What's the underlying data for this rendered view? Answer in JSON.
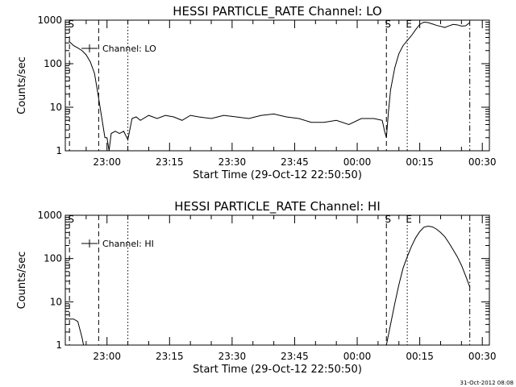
{
  "page": {
    "timestamp": "31-Oct-2012 08:08"
  },
  "chart_data": [
    {
      "type": "line",
      "title": "HESSI PARTICLE_RATE Channel: LO",
      "xlabel": "Start Time (29-Oct-12 22:50:50)",
      "ylabel": "Counts/sec",
      "y_scale": "log",
      "ylim": [
        1,
        1000
      ],
      "xlim_minutes_from_2250": [
        0,
        101.7
      ],
      "x_ticks": [
        "23:00",
        "23:15",
        "23:30",
        "23:45",
        "00:00",
        "00:15",
        "00:30"
      ],
      "y_ticks": [
        "1",
        "10",
        "100",
        "1000"
      ],
      "legend": {
        "label": "Channel: LO",
        "position": "top-left"
      },
      "markers": [
        {
          "label": "S",
          "time": "22:51",
          "style": "dashed"
        },
        {
          "label": "",
          "time": "22:58",
          "style": "dashed"
        },
        {
          "label": "",
          "time": "23:05",
          "style": "dotted"
        },
        {
          "label": "S",
          "time": "00:07",
          "style": "dashed"
        },
        {
          "label": "E",
          "time": "00:12",
          "style": "dotted"
        },
        {
          "label": "",
          "time": "00:27",
          "style": "dashdot"
        }
      ],
      "series": [
        {
          "name": "Channel: LO",
          "x": [
            "22:50:50",
            "22:52",
            "22:53",
            "22:54",
            "22:55",
            "22:56",
            "22:57",
            "22:58",
            "22:59",
            "22:59:30",
            "23:00",
            "23:00:30",
            "23:01",
            "23:02",
            "23:03",
            "23:04",
            "23:05",
            "23:06",
            "23:07",
            "23:08",
            "23:10",
            "23:12",
            "23:14",
            "23:16",
            "23:18",
            "23:20",
            "23:22",
            "23:25",
            "23:28",
            "23:31",
            "23:34",
            "23:37",
            "23:40",
            "23:43",
            "23:46",
            "23:49",
            "23:52",
            "23:55",
            "23:58",
            "00:01",
            "00:04",
            "00:06",
            "00:06:30",
            "00:07",
            "00:07:30",
            "00:08",
            "00:09",
            "00:10",
            "00:11",
            "00:12",
            "00:13",
            "00:14",
            "00:15",
            "00:16",
            "00:17",
            "00:18",
            "00:19",
            "00:20",
            "00:21",
            "00:22",
            "00:23",
            "00:24",
            "00:25",
            "00:26",
            "00:27"
          ],
          "y": [
            330,
            260,
            230,
            200,
            160,
            110,
            60,
            16,
            4,
            2,
            2,
            1,
            2.5,
            2.8,
            2.5,
            2.8,
            1.8,
            5.5,
            6,
            5,
            6.5,
            5.5,
            6.5,
            6,
            5,
            6.5,
            6,
            5.5,
            6.5,
            6,
            5.5,
            6.5,
            7,
            6,
            5.5,
            4.5,
            4.5,
            5,
            4,
            5.5,
            5.5,
            5,
            3,
            2,
            8,
            25,
            80,
            170,
            260,
            340,
            440,
            600,
            800,
            900,
            880,
            820,
            760,
            720,
            680,
            740,
            800,
            780,
            730,
            740,
            880
          ]
        }
      ]
    },
    {
      "type": "line",
      "title": "HESSI PARTICLE_RATE Channel: HI",
      "xlabel": "Start Time (29-Oct-12 22:50:50)",
      "ylabel": "Counts/sec",
      "y_scale": "log",
      "ylim": [
        1,
        1000
      ],
      "xlim_minutes_from_2250": [
        0,
        101.7
      ],
      "x_ticks": [
        "23:00",
        "23:15",
        "23:30",
        "23:45",
        "00:00",
        "00:15",
        "00:30"
      ],
      "y_ticks": [
        "1",
        "10",
        "100",
        "1000"
      ],
      "legend": {
        "label": "Channel: HI",
        "position": "top-left"
      },
      "markers": [
        {
          "label": "S",
          "time": "22:51",
          "style": "dashed"
        },
        {
          "label": "",
          "time": "22:58",
          "style": "dashed"
        },
        {
          "label": "",
          "time": "23:05",
          "style": "dotted"
        },
        {
          "label": "S",
          "time": "00:07",
          "style": "dashed"
        },
        {
          "label": "E",
          "time": "00:12",
          "style": "dotted"
        },
        {
          "label": "",
          "time": "00:27",
          "style": "dashdot"
        }
      ],
      "series": [
        {
          "name": "Channel: HI",
          "x": [
            "22:50:50",
            "22:52",
            "22:53",
            "22:54",
            "22:55",
            "00:07",
            "00:08",
            "00:09",
            "00:10",
            "00:11",
            "00:12",
            "00:13",
            "00:14",
            "00:15",
            "00:16",
            "00:17",
            "00:18",
            "00:19",
            "00:20",
            "00:21",
            "00:22",
            "00:23",
            "00:24",
            "00:25",
            "00:26",
            "00:27"
          ],
          "y": [
            4,
            4,
            3.5,
            1.5,
            0.5,
            1,
            3,
            9,
            25,
            60,
            110,
            190,
            300,
            420,
            530,
            560,
            540,
            480,
            400,
            320,
            230,
            160,
            110,
            70,
            40,
            22
          ]
        }
      ]
    }
  ]
}
